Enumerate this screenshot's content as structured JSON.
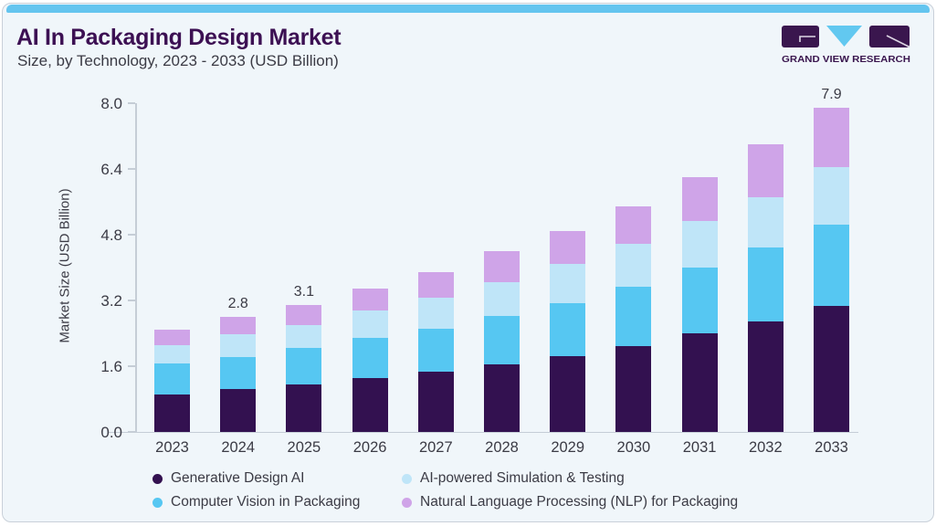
{
  "header": {
    "title": "AI In Packaging Design Market",
    "subtitle": "Size, by Technology, 2023 - 2033 (USD Billion)"
  },
  "logo": {
    "brand": "GRAND VIEW RESEARCH",
    "block_color": "#3A164E",
    "v_color": "#62C8F0"
  },
  "theme": {
    "accent_bar_color": "#64C5EF",
    "card_background": "#F0F6FA",
    "card_border": "#C9D0D9",
    "text_color": "#3B3B45",
    "title_color": "#3C1053",
    "axis_color": "#C5CDD6"
  },
  "chart_data": {
    "type": "bar",
    "stacked": true,
    "title": "AI In Packaging Design Market Size, by Technology, 2023 - 2033 (USD Billion)",
    "xlabel": "",
    "ylabel": "Market Size (USD Billion)",
    "ylim": [
      0,
      8.0
    ],
    "ytick_labels": [
      "0.0",
      "1.6",
      "3.2",
      "4.8",
      "6.4",
      "8.0"
    ],
    "grid": false,
    "legend_position": "bottom",
    "categories": [
      "2023",
      "2024",
      "2025",
      "2026",
      "2027",
      "2028",
      "2029",
      "2030",
      "2031",
      "2032",
      "2033"
    ],
    "series": [
      {
        "name": "Generative Design AI",
        "color": "#331150",
        "values": [
          0.92,
          1.04,
          1.16,
          1.32,
          1.47,
          1.64,
          1.84,
          2.09,
          2.39,
          2.69,
          3.06
        ]
      },
      {
        "name": "Computer Vision in Packaging",
        "color": "#56C7F2",
        "values": [
          0.75,
          0.78,
          0.89,
          0.97,
          1.04,
          1.19,
          1.29,
          1.45,
          1.6,
          1.79,
          1.98
        ]
      },
      {
        "name": "AI-powered Simulation & Testing",
        "color": "#BFE5F8",
        "values": [
          0.45,
          0.55,
          0.56,
          0.67,
          0.76,
          0.81,
          0.95,
          1.03,
          1.15,
          1.24,
          1.4
        ]
      },
      {
        "name": "Natural Language Processing (NLP) for Packaging",
        "color": "#CFA4E8",
        "values": [
          0.38,
          0.43,
          0.49,
          0.54,
          0.63,
          0.76,
          0.82,
          0.93,
          1.06,
          1.28,
          1.46
        ]
      }
    ],
    "totals": [
      2.5,
      2.8,
      3.1,
      3.5,
      3.9,
      4.4,
      4.9,
      5.5,
      6.2,
      7.0,
      7.9
    ],
    "bar_value_labels": {
      "2024": "2.8",
      "2025": "3.1",
      "2033": "7.9"
    }
  },
  "legend": {
    "items": [
      {
        "label": "Generative Design AI",
        "color": "#331150"
      },
      {
        "label": "AI-powered Simulation & Testing",
        "color": "#BFE5F8"
      },
      {
        "label": "Computer Vision in Packaging",
        "color": "#56C7F2"
      },
      {
        "label": "Natural Language Processing (NLP) for Packaging",
        "color": "#CFA4E8"
      }
    ]
  }
}
